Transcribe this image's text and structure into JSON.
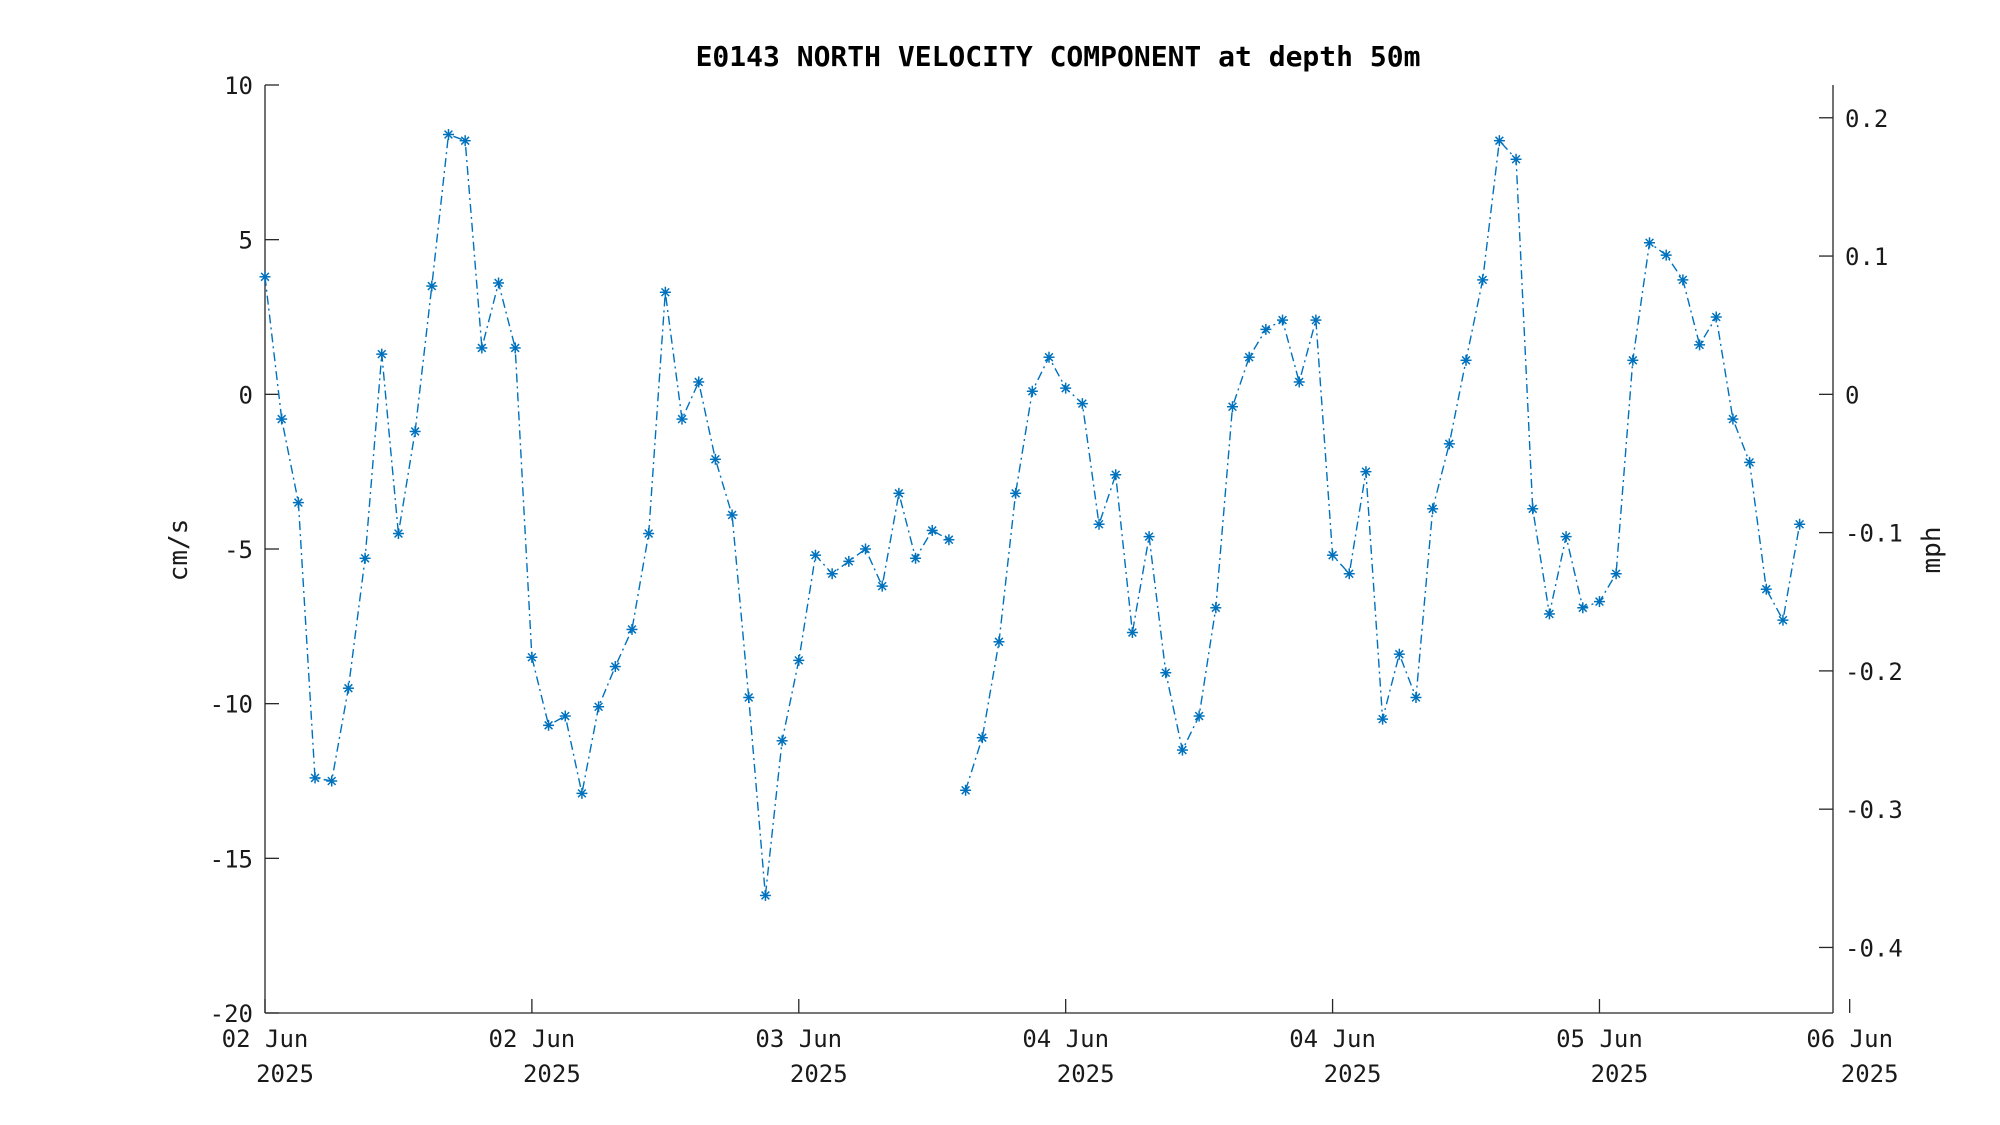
{
  "chart_data": {
    "type": "line",
    "title": "E0143 NORTH VELOCITY COMPONENT at depth 50m",
    "ylabel": "cm/s",
    "ylabel_right": "mph",
    "ylim": [
      -20,
      10
    ],
    "yticks": [
      10,
      5,
      0,
      -5,
      -10,
      -15,
      -20
    ],
    "ylim_right": [
      -0.4474,
      0.2237
    ],
    "yticks_right": [
      0.2,
      0.1,
      0,
      -0.1,
      -0.2,
      -0.3,
      -0.4
    ],
    "yticks_right_labels": [
      "0.2",
      "0.1",
      "0",
      "-0.1",
      "-0.2",
      "-0.3",
      "-0.4"
    ],
    "x_tick_labels": [
      [
        "02 Jun",
        "2025"
      ],
      [
        "02 Jun",
        "2025"
      ],
      [
        "03 Jun",
        "2025"
      ],
      [
        "04 Jun",
        "2025"
      ],
      [
        "04 Jun",
        "2025"
      ],
      [
        "05 Jun",
        "2025"
      ],
      [
        "06 Jun",
        "2025"
      ]
    ],
    "x_sample_count": 95,
    "x_ticks_at_sample": [
      0,
      16,
      32,
      48,
      64,
      80,
      95
    ],
    "grid": false,
    "legend": "none",
    "series": [
      {
        "color": "#0072bd",
        "line_style": "dash-dot",
        "marker": "asterisk",
        "gap_after_sample": 42,
        "values": [
          3.8,
          -0.8,
          -3.5,
          -12.4,
          -12.5,
          -9.5,
          -5.3,
          1.3,
          -4.5,
          -1.2,
          3.5,
          8.4,
          8.2,
          1.5,
          3.6,
          1.5,
          -8.5,
          -10.7,
          -10.4,
          -12.9,
          -10.1,
          -8.8,
          -7.6,
          -4.5,
          3.3,
          -0.8,
          0.4,
          -2.1,
          -3.9,
          -9.8,
          -16.2,
          -11.2,
          -8.6,
          -5.2,
          -5.8,
          -5.4,
          -5.0,
          -6.2,
          -3.2,
          -5.3,
          -4.4,
          -4.7,
          -12.8,
          -11.1,
          -8.0,
          -3.2,
          0.1,
          1.2,
          0.2,
          -0.3,
          -4.2,
          -2.6,
          -7.7,
          -4.6,
          -9.0,
          -11.5,
          -10.4,
          -6.9,
          -0.4,
          1.2,
          2.1,
          2.4,
          0.4,
          2.4,
          -5.2,
          -5.8,
          -2.5,
          -10.5,
          -8.4,
          -9.8,
          -3.7,
          -1.6,
          1.1,
          3.7,
          8.2,
          7.6,
          -3.7,
          -7.1,
          -4.6,
          -6.9,
          -6.7,
          -5.8,
          1.1,
          4.9,
          4.5,
          3.7,
          1.6,
          2.5,
          -0.8,
          -2.2,
          -6.3,
          -7.3,
          -4.2
        ]
      }
    ]
  }
}
